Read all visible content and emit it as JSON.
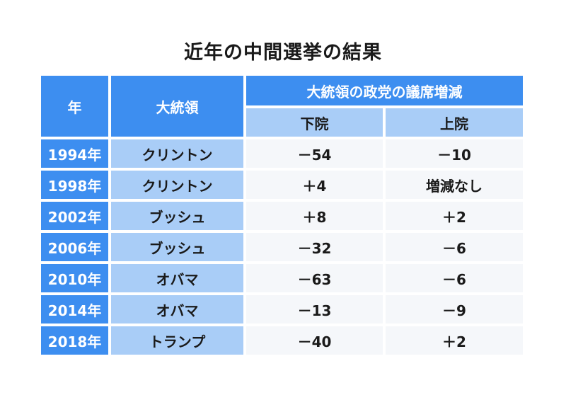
{
  "title": "近年の中間選挙の結果",
  "header": {
    "year": "年",
    "president": "大統領",
    "seats_change": "大統領の政党の議席増減",
    "house": "下院",
    "senate": "上院"
  },
  "rows": [
    {
      "year": "1994年",
      "president": "クリントン",
      "house": "－54",
      "senate": "－10"
    },
    {
      "year": "1998年",
      "president": "クリントン",
      "house": "＋4",
      "senate": "増減なし"
    },
    {
      "year": "2002年",
      "president": "ブッシュ",
      "house": "＋8",
      "senate": "＋2"
    },
    {
      "year": "2006年",
      "president": "ブッシュ",
      "house": "－32",
      "senate": "－6"
    },
    {
      "year": "2010年",
      "president": "オバマ",
      "house": "－63",
      "senate": "－6"
    },
    {
      "year": "2014年",
      "president": "オバマ",
      "house": "－13",
      "senate": "－9"
    },
    {
      "year": "2018年",
      "president": "トランプ",
      "house": "－40",
      "senate": "＋2"
    }
  ],
  "colors": {
    "header_dark": "#3d8ef0",
    "header_light": "#a9cdf7",
    "value_bg": "#f5f7fa"
  }
}
